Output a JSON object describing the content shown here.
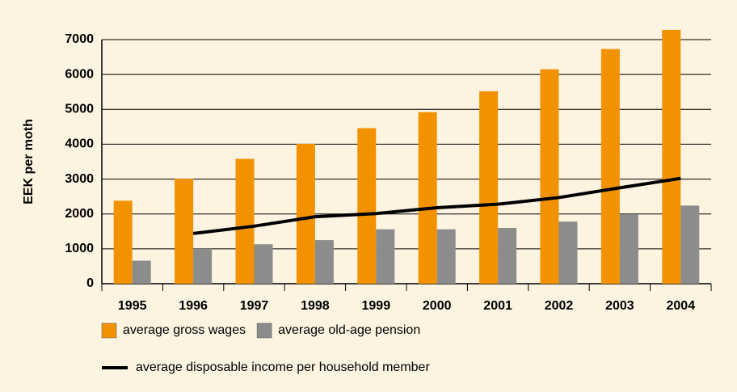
{
  "chart_data": {
    "type": "bar",
    "categories": [
      "1995",
      "1996",
      "1997",
      "1998",
      "1999",
      "2000",
      "2001",
      "2002",
      "2003",
      "2004"
    ],
    "y_label": "EEK per moth",
    "ylim": [
      0,
      7000
    ],
    "yticks": [
      0,
      1000,
      2000,
      3000,
      4000,
      5000,
      6000,
      7000
    ],
    "grid": true,
    "legend": "bottom",
    "series": [
      {
        "name": "average gross wages",
        "type": "bar",
        "color": "#f39200",
        "values": [
          2380,
          3010,
          3580,
          4010,
          4460,
          4920,
          5520,
          6150,
          6730,
          7280
        ]
      },
      {
        "name": "average old-age pension",
        "type": "bar",
        "color": "#8c8c8c",
        "values": [
          660,
          1000,
          1130,
          1250,
          1560,
          1560,
          1600,
          1780,
          1990,
          2240
        ]
      },
      {
        "name": "average disposable income per household member",
        "type": "line",
        "color": "#000000",
        "values": [
          null,
          1440,
          1650,
          1920,
          2010,
          2180,
          2280,
          2470,
          2750,
          3020
        ]
      }
    ]
  }
}
